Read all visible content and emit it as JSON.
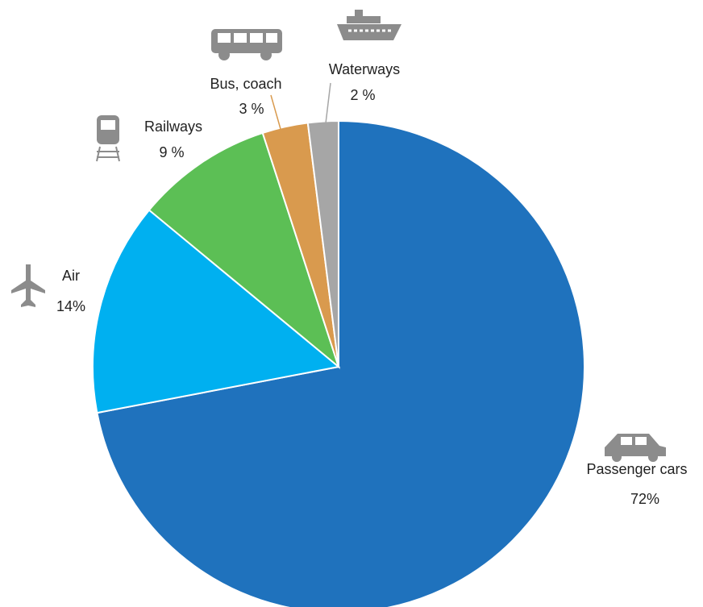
{
  "chart_data": {
    "type": "pie",
    "categories": [
      "Passenger cars",
      "Air",
      "Railways",
      "Bus, coach",
      "Waterways"
    ],
    "values": [
      72,
      14,
      9,
      3,
      2
    ],
    "value_labels": [
      "72%",
      "14%",
      "9 %",
      "3 %",
      "2 %"
    ],
    "colors": [
      "#1f72bd",
      "#00b0f0",
      "#5cbf55",
      "#d99a4e",
      "#a6a6a6"
    ]
  }
}
